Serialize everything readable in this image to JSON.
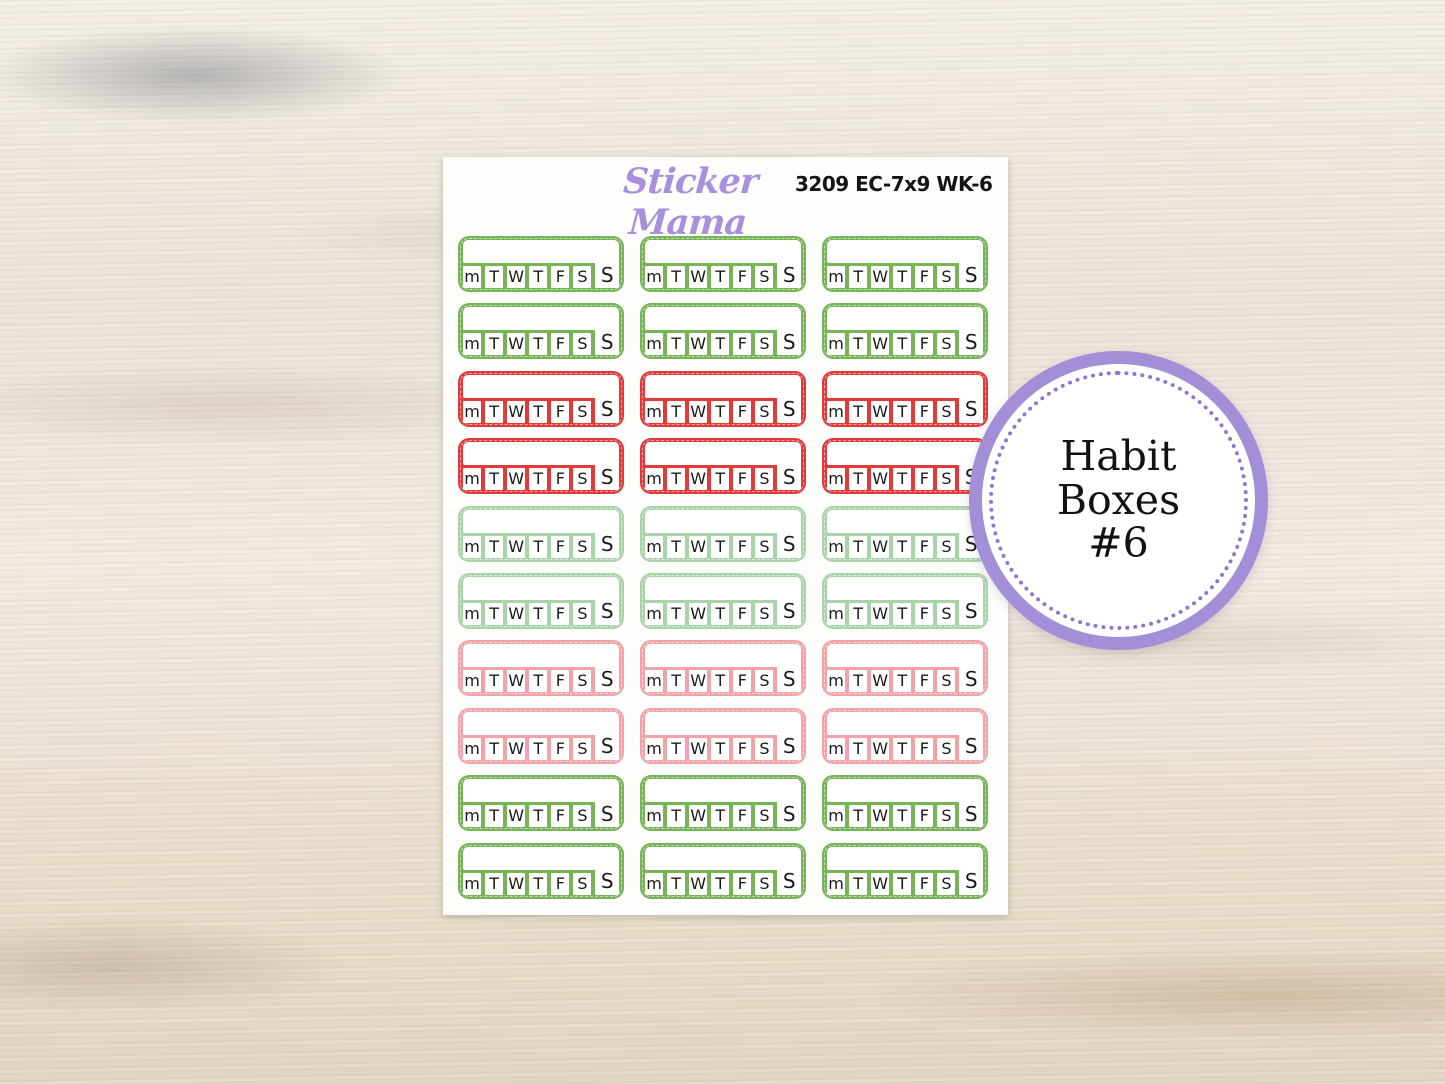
{
  "sheet": {
    "brand": "Sticker Mama",
    "product_code": "3209 EC-7x9 WK-6"
  },
  "badge": {
    "lines": [
      "Habit",
      "Boxes",
      "#6"
    ],
    "border_color": "#a28fd8",
    "dots_color": "#8c76cf"
  },
  "stickers": {
    "type": "weekly habit tracker box",
    "days": [
      "m",
      "T",
      "W",
      "T",
      "F",
      "S",
      "S"
    ],
    "columns": 3,
    "rows": [
      {
        "color_name": "green",
        "hex": "#76b457"
      },
      {
        "color_name": "green",
        "hex": "#76b457"
      },
      {
        "color_name": "red",
        "hex": "#e03a3b"
      },
      {
        "color_name": "red",
        "hex": "#e03a3b"
      },
      {
        "color_name": "pastel-green",
        "hex": "#a9d3a9"
      },
      {
        "color_name": "pastel-green",
        "hex": "#a9d3a9"
      },
      {
        "color_name": "pink",
        "hex": "#f1a3a7"
      },
      {
        "color_name": "pink",
        "hex": "#f1a3a7"
      },
      {
        "color_name": "green",
        "hex": "#76b457"
      },
      {
        "color_name": "green",
        "hex": "#76b457"
      }
    ]
  },
  "colors": {
    "brand_text": "#a890dc",
    "code_text": "#141414",
    "sheet": "#fdfdfc",
    "wood_base": "#ece6dc"
  }
}
